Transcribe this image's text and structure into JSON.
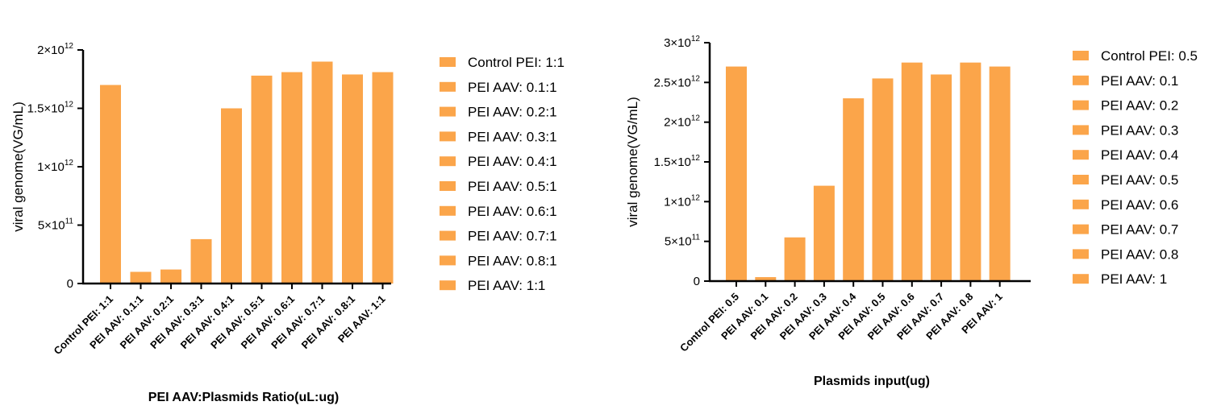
{
  "bar_color": "#FBA54A",
  "chart_data": [
    {
      "type": "bar",
      "title": "",
      "xlabel": "PEI AAV:Plasmids Ratio(uL:ug)",
      "ylabel": "viral genome(VG/mL)",
      "categories": [
        "Control PEI:  1:1",
        "PEI AAV: 0.1:1",
        "PEI AAV: 0.2:1",
        "PEI AAV: 0.3:1",
        "PEI AAV: 0.4:1",
        "PEI AAV: 0.5:1",
        "PEI AAV: 0.6:1",
        "PEI AAV: 0.7:1",
        "PEI AAV: 0.8:1",
        "PEI AAV: 1:1"
      ],
      "values": [
        1700000000000.0,
        100000000000.0,
        120000000000.0,
        380000000000.0,
        1500000000000.0,
        1780000000000.0,
        1810000000000.0,
        1900000000000.0,
        1790000000000.0,
        1810000000000.0
      ],
      "ylim": [
        0,
        2000000000000.0
      ],
      "yticks": [
        {
          "value": 0,
          "mantissa": "0",
          "exponent": ""
        },
        {
          "value": 500000000000.0,
          "mantissa": "5×10",
          "exponent": "11"
        },
        {
          "value": 1000000000000.0,
          "mantissa": "1×10",
          "exponent": "12"
        },
        {
          "value": 1500000000000.0,
          "mantissa": "1.5×10",
          "exponent": "12"
        },
        {
          "value": 2000000000000.0,
          "mantissa": "2×10",
          "exponent": "12"
        }
      ],
      "legend": [
        "Control PEI:  1:1",
        "PEI AAV: 0.1:1",
        "PEI AAV: 0.2:1",
        "PEI AAV: 0.3:1",
        "PEI AAV: 0.4:1",
        "PEI AAV: 0.5:1",
        "PEI AAV: 0.6:1",
        "PEI AAV: 0.7:1",
        "PEI AAV: 0.8:1",
        "PEI AAV: 1:1"
      ],
      "legend_position": "right"
    },
    {
      "type": "bar",
      "title": "",
      "xlabel": "Plasmids input(ug)",
      "ylabel": "viral genome(VG/mL)",
      "categories": [
        "Control PEI: 0.5",
        "PEI AAV: 0.1",
        "PEI AAV: 0.2",
        "PEI AAV: 0.3",
        "PEI AAV: 0.4",
        "PEI AAV: 0.5",
        "PEI AAV: 0.6",
        "PEI AAV: 0.7",
        "PEI AAV: 0.8",
        "PEI AAV: 1"
      ],
      "values": [
        2700000000000.0,
        50000000000.0,
        550000000000.0,
        1200000000000.0,
        2300000000000.0,
        2550000000000.0,
        2750000000000.0,
        2600000000000.0,
        2750000000000.0,
        2700000000000.0
      ],
      "ylim": [
        0,
        3000000000000.0
      ],
      "yticks": [
        {
          "value": 0,
          "mantissa": "0",
          "exponent": ""
        },
        {
          "value": 500000000000.0,
          "mantissa": "5×10",
          "exponent": "11"
        },
        {
          "value": 1000000000000.0,
          "mantissa": "1×10",
          "exponent": "12"
        },
        {
          "value": 1500000000000.0,
          "mantissa": "1.5×10",
          "exponent": "12"
        },
        {
          "value": 2000000000000.0,
          "mantissa": "2×10",
          "exponent": "12"
        },
        {
          "value": 2500000000000.0,
          "mantissa": "2.5×10",
          "exponent": "12"
        },
        {
          "value": 3000000000000.0,
          "mantissa": "3×10",
          "exponent": "12"
        }
      ],
      "legend": [
        "Control PEI: 0.5",
        "PEI AAV: 0.1",
        "PEI AAV: 0.2",
        "PEI AAV: 0.3",
        "PEI AAV: 0.4",
        "PEI AAV: 0.5",
        "PEI AAV: 0.6",
        "PEI AAV: 0.7",
        "PEI AAV: 0.8",
        "PEI AAV: 1"
      ],
      "legend_position": "right"
    }
  ]
}
